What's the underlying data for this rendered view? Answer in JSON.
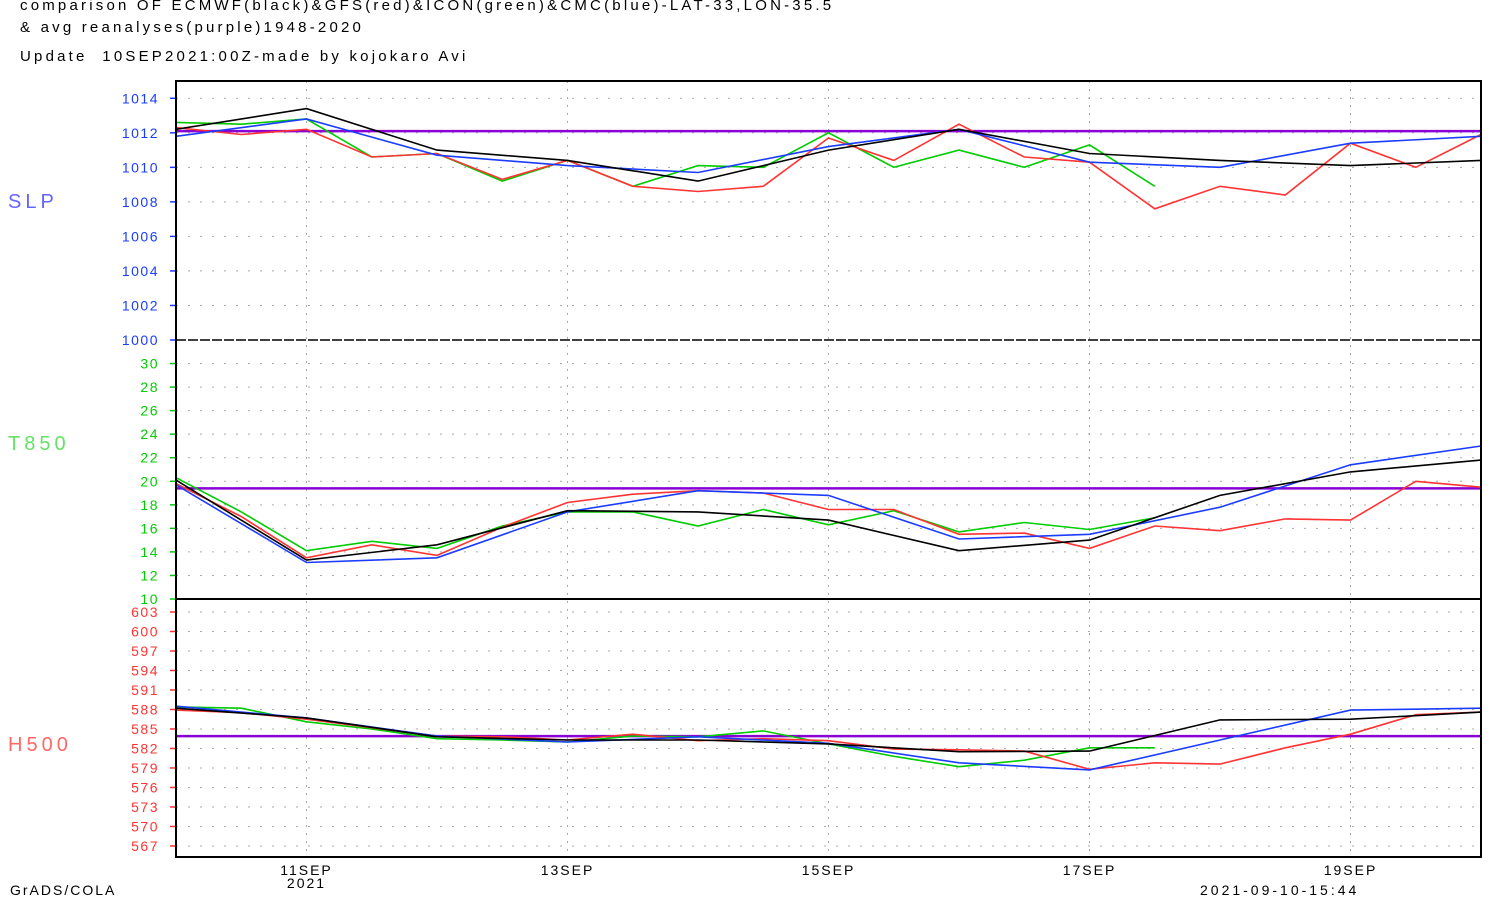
{
  "header": {
    "line1": "comparison OF ECMWF(black)&GFS(red)&ICON(green)&CMC(blue)-LAT-33,LON-35.5",
    "line2": "& avg reanalyses(purple)1948-2020",
    "line3": "Update  10SEP2021:00Z-made by kojokaro Avi"
  },
  "footer": {
    "left": "GrADS/COLA",
    "right": "2021-09-10-15:44"
  },
  "chart_data": {
    "type": "line",
    "x": [
      "2021-09-10 00Z",
      "2021-09-10 12Z",
      "2021-09-11 00Z",
      "2021-09-11 12Z",
      "2021-09-12 00Z",
      "2021-09-12 12Z",
      "2021-09-13 00Z",
      "2021-09-13 12Z",
      "2021-09-14 00Z",
      "2021-09-14 12Z",
      "2021-09-15 00Z",
      "2021-09-15 12Z",
      "2021-09-16 00Z",
      "2021-09-16 12Z",
      "2021-09-17 00Z",
      "2021-09-17 12Z",
      "2021-09-18 00Z",
      "2021-09-18 12Z",
      "2021-09-19 00Z",
      "2021-09-19 12Z",
      "2021-09-20 00Z"
    ],
    "xticks": [
      {
        "x": "2021-09-11 00Z",
        "label": "11SEP",
        "sub": "2021"
      },
      {
        "x": "2021-09-13 00Z",
        "label": "13SEP"
      },
      {
        "x": "2021-09-15 00Z",
        "label": "15SEP"
      },
      {
        "x": "2021-09-17 00Z",
        "label": "17SEP"
      },
      {
        "x": "2021-09-19 00Z",
        "label": "19SEP"
      }
    ],
    "grid": true,
    "colors": {
      "ECMWF": "#000000",
      "GFS": "#ff3333",
      "ICON": "#00cc00",
      "CMC": "#1a3cff",
      "avg": "#8a00d4"
    },
    "panels": [
      {
        "label": "SLP",
        "label_color": "#6464ff",
        "tick_color": "#1a3cff",
        "ylim": [
          1000,
          1015
        ],
        "ticks": [
          1000,
          1002,
          1004,
          1006,
          1008,
          1010,
          1012,
          1014
        ],
        "avg": 1012.1,
        "series": [
          {
            "model": "ECMWF",
            "values": [
              1012.2,
              null,
              1013.4,
              null,
              1011.0,
              null,
              1010.4,
              null,
              1009.2,
              null,
              1011.0,
              null,
              1012.2,
              null,
              1010.8,
              null,
              1010.4,
              null,
              1010.1,
              null,
              1010.4
            ]
          },
          {
            "model": "GFS",
            "values": [
              1012.3,
              1011.9,
              1012.2,
              1010.6,
              1010.8,
              1009.3,
              1010.4,
              1008.9,
              1008.6,
              1008.9,
              1011.7,
              1010.4,
              1012.5,
              1010.6,
              1010.3,
              1007.6,
              1008.9,
              1008.4,
              1011.4,
              1010.0,
              1011.9
            ]
          },
          {
            "model": "ICON",
            "values": [
              1012.6,
              1012.5,
              1012.8,
              1010.6,
              1010.8,
              1009.2,
              1010.4,
              1008.9,
              1010.1,
              1010.0,
              1012.0,
              1010.0,
              1011.0,
              1010.0,
              1011.3,
              1008.9,
              null,
              null,
              null,
              null,
              null
            ]
          },
          {
            "model": "CMC",
            "values": [
              1011.8,
              null,
              1012.8,
              null,
              1010.7,
              null,
              1010.1,
              null,
              1009.7,
              null,
              1011.2,
              null,
              1012.2,
              null,
              1010.3,
              null,
              1010.0,
              null,
              1011.4,
              null,
              1011.8
            ]
          }
        ]
      },
      {
        "label": "T850",
        "label_color": "#66e066",
        "tick_color": "#00cc00",
        "ylim": [
          10,
          32
        ],
        "ticks": [
          10,
          12,
          14,
          16,
          18,
          20,
          22,
          24,
          26,
          28,
          30
        ],
        "avg": 19.4,
        "series": [
          {
            "model": "ECMWF",
            "values": [
              20.1,
              null,
              13.3,
              null,
              14.6,
              null,
              17.5,
              null,
              17.4,
              null,
              16.7,
              null,
              14.1,
              null,
              15.0,
              null,
              18.8,
              null,
              20.8,
              null,
              21.8
            ]
          },
          {
            "model": "GFS",
            "values": [
              19.8,
              17.0,
              13.5,
              14.6,
              13.7,
              16.1,
              18.2,
              18.9,
              19.2,
              19.0,
              17.6,
              17.6,
              15.5,
              15.6,
              14.3,
              16.2,
              15.8,
              16.8,
              16.7,
              20.0,
              19.5
            ]
          },
          {
            "model": "ICON",
            "values": [
              20.3,
              17.4,
              14.1,
              14.9,
              14.3,
              16.2,
              17.4,
              17.4,
              16.2,
              17.6,
              16.3,
              17.5,
              15.7,
              16.5,
              15.9,
              16.9,
              null,
              null,
              null,
              null,
              null
            ]
          },
          {
            "model": "CMC",
            "values": [
              19.7,
              null,
              13.1,
              null,
              13.5,
              null,
              17.4,
              null,
              19.2,
              null,
              18.8,
              null,
              15.1,
              null,
              15.5,
              null,
              17.8,
              null,
              21.4,
              null,
              23.0
            ]
          }
        ]
      },
      {
        "label": "H500",
        "label_color": "#ff6666",
        "tick_color": "#ff3333",
        "ylim": [
          565.3,
          605
        ],
        "ticks": [
          567,
          570,
          573,
          576,
          579,
          582,
          585,
          588,
          591,
          594,
          597,
          600,
          603
        ],
        "avg": 583.9,
        "series": [
          {
            "model": "ECMWF",
            "values": [
              588.2,
              null,
              586.7,
              null,
              583.8,
              null,
              583.3,
              null,
              583.3,
              null,
              582.7,
              null,
              581.5,
              null,
              581.6,
              null,
              586.4,
              null,
              586.5,
              null,
              587.6
            ]
          },
          {
            "model": "GFS",
            "values": [
              587.9,
              587.5,
              586.5,
              585.2,
              583.9,
              583.8,
              583.3,
              584.2,
              583.2,
              583.5,
              583.2,
              581.9,
              581.8,
              581.6,
              578.8,
              579.8,
              579.6,
              582.1,
              584.2,
              587.2,
              587.6
            ]
          },
          {
            "model": "ICON",
            "values": [
              588.4,
              588.2,
              586.1,
              585.0,
              583.5,
              583.3,
              583.0,
              583.9,
              583.8,
              584.7,
              582.7,
              580.8,
              579.2,
              580.2,
              582.1,
              582.1,
              null,
              null,
              null,
              null,
              null
            ]
          },
          {
            "model": "CMC",
            "values": [
              588.5,
              null,
              586.7,
              null,
              583.9,
              null,
              583.0,
              null,
              583.8,
              null,
              582.8,
              null,
              579.8,
              null,
              578.7,
              null,
              583.3,
              null,
              587.9,
              null,
              588.2
            ]
          }
        ]
      }
    ]
  }
}
